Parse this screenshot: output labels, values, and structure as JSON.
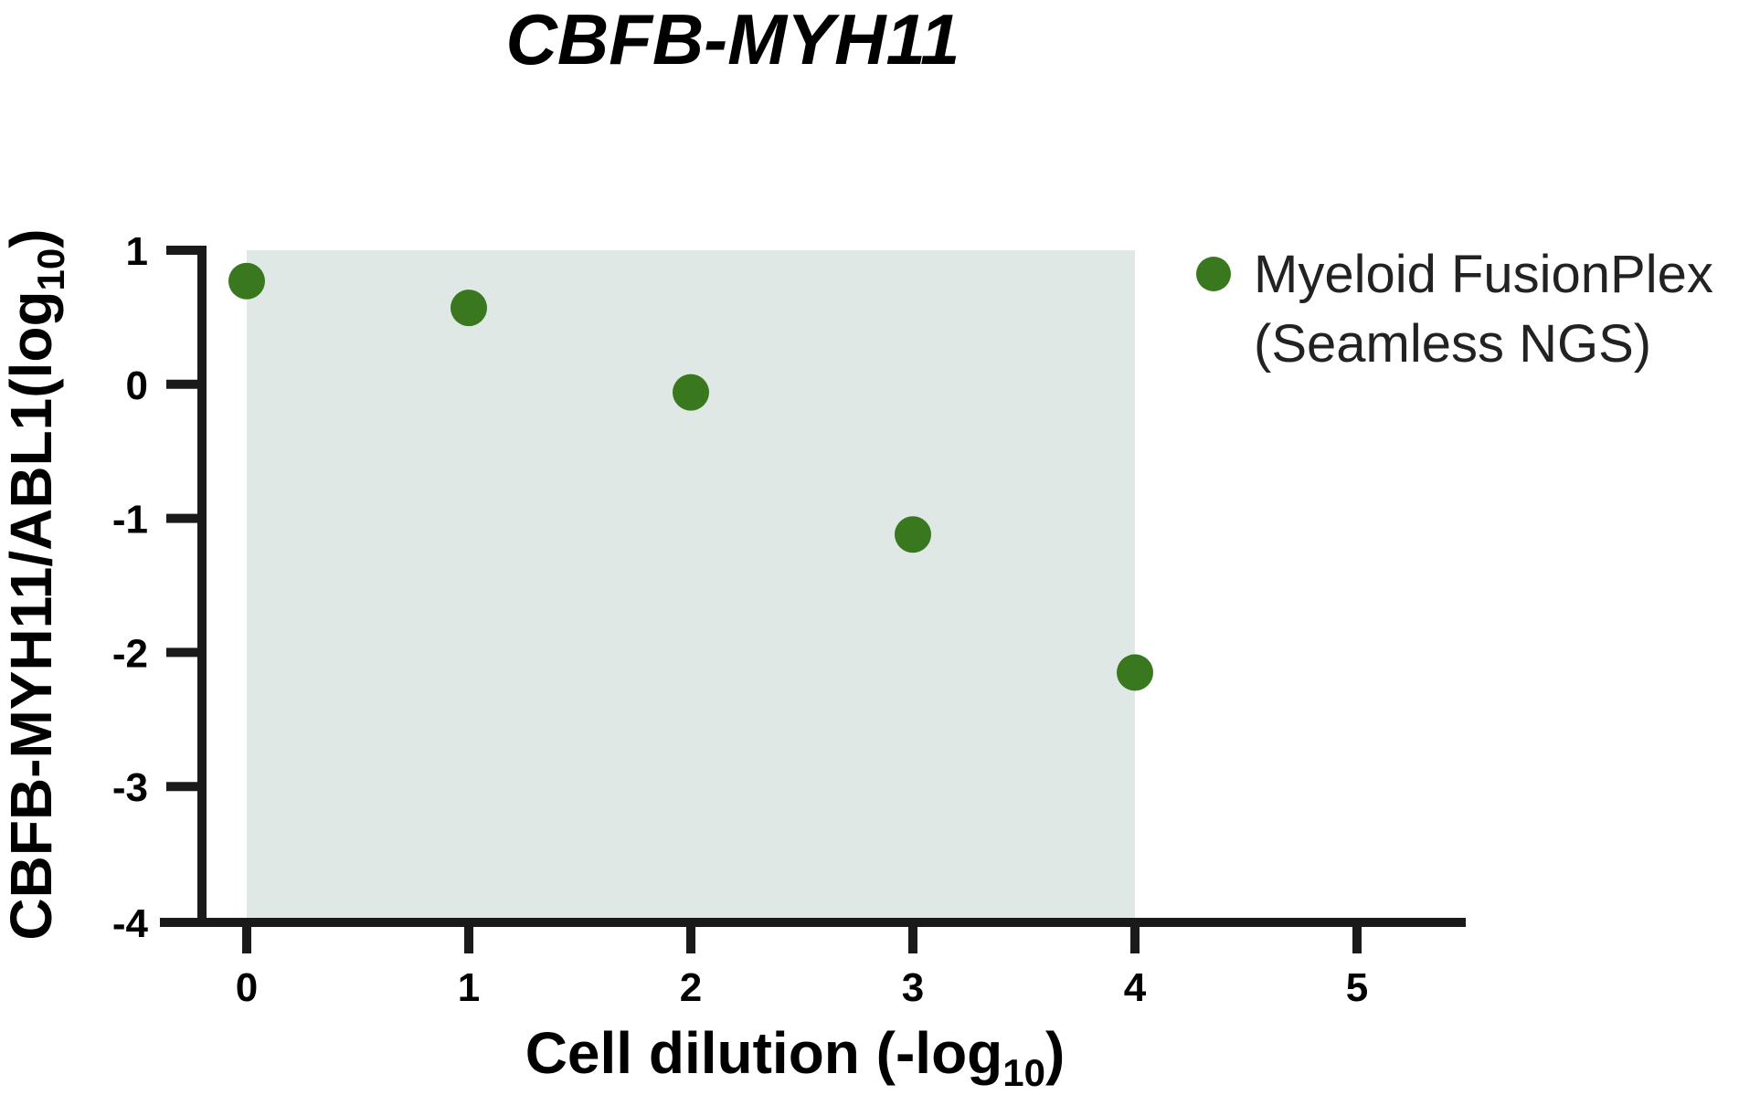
{
  "chart_data": {
    "type": "scatter",
    "title": "CBFB-MYH11",
    "xlabel": {
      "main": "Cell dilution (-log",
      "sub": "10",
      "tail": ")"
    },
    "ylabel": {
      "main": "CBFB-MYH11/ABL1(log",
      "sub": "10",
      "tail": ")"
    },
    "xlim": [
      -0.2,
      5.5
    ],
    "ylim": [
      -4,
      1
    ],
    "xticks": [
      0,
      1,
      2,
      3,
      4,
      5
    ],
    "yticks": [
      1,
      0,
      -1,
      -2,
      -3,
      -4
    ],
    "shaded_region": {
      "x": [
        0,
        4
      ],
      "y": [
        -4,
        1
      ],
      "color": "#dfe8e4"
    },
    "grid": false,
    "legend_position": "top-right",
    "series": [
      {
        "name": "Myeloid FusionPlex (Seamless NGS)",
        "name_lines": [
          "Myeloid FusionPlex",
          "(Seamless NGS)"
        ],
        "color": "#3a7820",
        "points": [
          {
            "x": 0,
            "y": 0.77
          },
          {
            "x": 1,
            "y": 0.57
          },
          {
            "x": 2,
            "y": -0.06
          },
          {
            "x": 3,
            "y": -1.12
          },
          {
            "x": 4,
            "y": -2.15
          }
        ]
      }
    ]
  }
}
